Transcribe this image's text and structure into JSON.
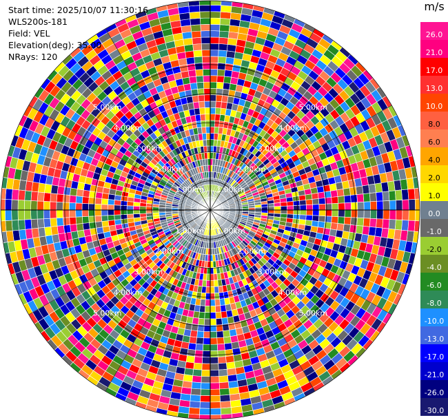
{
  "info": {
    "start_time": "Start time: 2025/10/07 11:30:16",
    "instrument": "WLS200s-181",
    "field": "Field: VEL",
    "elevation": "Elevation(deg): 35.00",
    "nrays": "NRays: 120"
  },
  "colorbar": {
    "unit": "m/s",
    "ticks": [
      "26.0",
      "21.0",
      "17.0",
      "13.0",
      "10.0",
      "8.0",
      "6.0",
      "4.0",
      "2.0",
      "1.0",
      "0.0",
      "-1.0",
      "-2.0",
      "-4.0",
      "-6.0",
      "-8.0",
      "-10.0",
      "-13.0",
      "-17.0",
      "-21.0",
      "-26.0",
      "-30.0"
    ],
    "colors": [
      "#ff1493",
      "#ff0080",
      "#ff0000",
      "#ff3030",
      "#ff4500",
      "#ff6040",
      "#ff7f50",
      "#ffa500",
      "#ffd700",
      "#ffff00",
      "#708090",
      "#696969",
      "#9acd32",
      "#6b8e23",
      "#228b22",
      "#2e8b57",
      "#1e90ff",
      "#4169e1",
      "#0000ff",
      "#0000cd",
      "#000080",
      "#191970"
    ]
  },
  "range_labels": [
    "1.00km",
    "2.00km",
    "3.00km",
    "4.00km",
    "5.00km"
  ],
  "chart_data": {
    "type": "ppi",
    "field": "VEL",
    "units": "m/s",
    "elevation_deg": 35.0,
    "n_rays": 120,
    "range_rings_km": [
      1,
      2,
      3,
      4,
      5
    ],
    "max_range_km": 7.2,
    "value_range": [
      -30,
      26
    ],
    "note_near": "near range (<1.5 km) mostly 0.0 m/s with small clusters of -2.0 (north) and 4.0 (south)",
    "note_far": "beyond ~1.5 km values are noisy across the full scale"
  }
}
